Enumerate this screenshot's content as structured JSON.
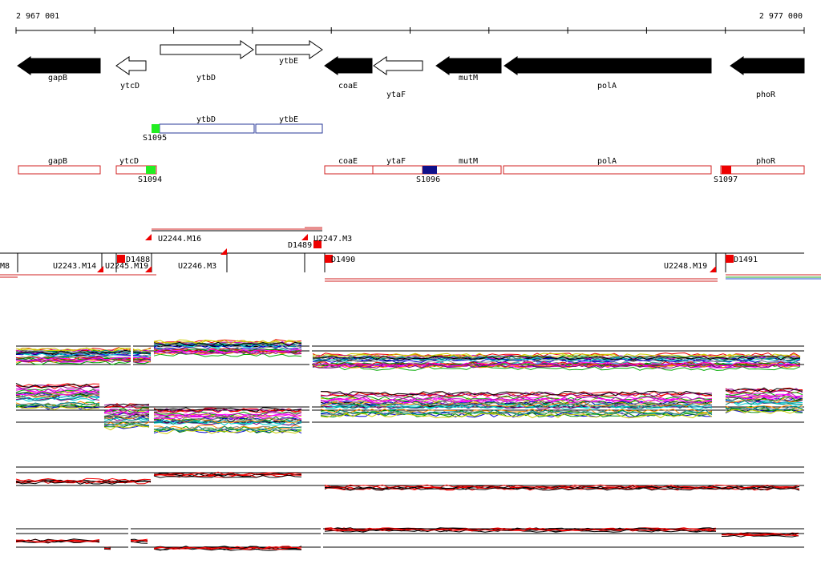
{
  "header": {
    "start": "2 967 001",
    "end": "2 977 000"
  },
  "genes": [
    "gapB",
    "ytcD",
    "ytbD",
    "ytbE",
    "coaE",
    "ytaF",
    "mutM",
    "polA",
    "phoR"
  ],
  "track2": {
    "genes": [
      "ytbD",
      "ytbE"
    ],
    "spots": [
      "S1095"
    ]
  },
  "track3": {
    "genes": [
      "gapB",
      "ytcD",
      "coaE",
      "ytaF",
      "mutM",
      "polA",
      "phoR"
    ],
    "spots": [
      "S1094",
      "S1096",
      "S1097"
    ]
  },
  "segments": {
    "labels": [
      "U2244.M16",
      "U2247.M3",
      "D1489",
      "D1490",
      "D1491",
      "M8",
      "U2243.M14",
      "U2245.M19",
      "D1488",
      "U2246.M3",
      "U2248.M19"
    ]
  }
}
